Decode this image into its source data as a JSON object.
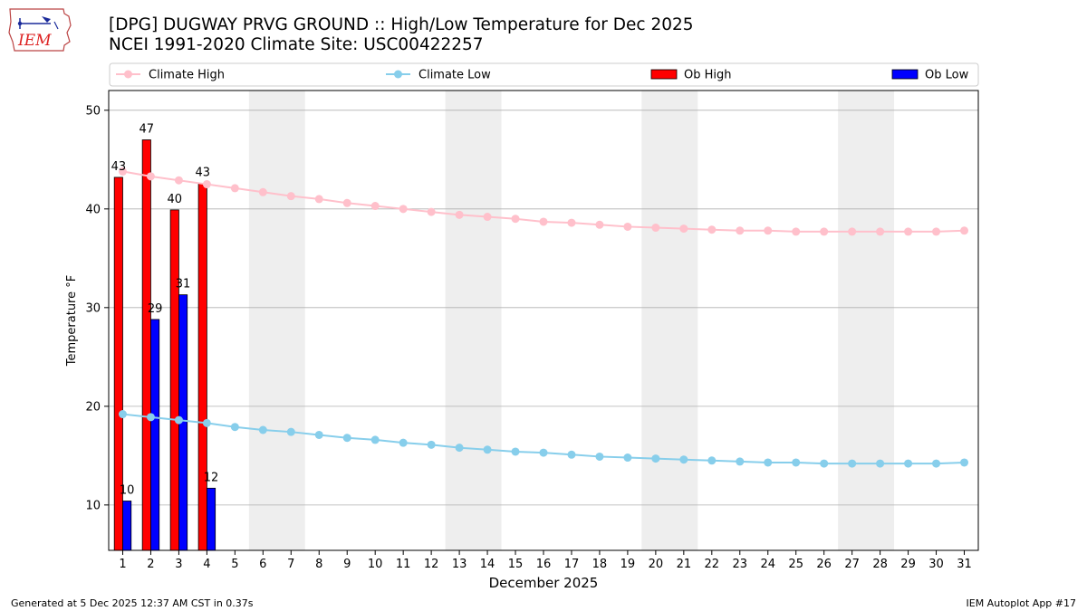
{
  "logo": {
    "text": "IEM"
  },
  "title": {
    "line1": "[DPG] DUGWAY PRVG GROUND :: High/Low Temperature for Dec 2025",
    "line2": "NCEI 1991-2020 Climate Site: USC00422257"
  },
  "footer": {
    "left": "Generated at 5 Dec 2025 12:37 AM CST in 0.37s",
    "right": "IEM Autoplot App #17"
  },
  "colors": {
    "climate_high": "#ffc0cb",
    "climate_low": "#87ceeb",
    "ob_high": "#ff0000",
    "ob_low": "#0000ff",
    "weekend_band": "#eeeeee",
    "grid": "#b0b0b0"
  },
  "chart_data": {
    "type": "bar",
    "xlabel": "December 2025",
    "ylabel": "Temperature °F",
    "ylim": [
      5.4,
      52
    ],
    "xlim": [
      0.5,
      31.5
    ],
    "yticks": [
      10,
      20,
      30,
      40,
      50
    ],
    "grid": "horizontal",
    "legend_placement": "top, above plot",
    "legend": [
      "Climate High",
      "Climate Low",
      "Ob High",
      "Ob Low"
    ],
    "days": [
      1,
      2,
      3,
      4,
      5,
      6,
      7,
      8,
      9,
      10,
      11,
      12,
      13,
      14,
      15,
      16,
      17,
      18,
      19,
      20,
      21,
      22,
      23,
      24,
      25,
      26,
      27,
      28,
      29,
      30,
      31
    ],
    "weekend_bands": [
      [
        6,
        7
      ],
      [
        13,
        14
      ],
      [
        20,
        21
      ],
      [
        27,
        28
      ]
    ],
    "series": [
      {
        "name": "Climate High",
        "kind": "line",
        "values": [
          43.8,
          43.3,
          42.9,
          42.5,
          42.1,
          41.7,
          41.3,
          41.0,
          40.6,
          40.3,
          40.0,
          39.7,
          39.4,
          39.2,
          39.0,
          38.7,
          38.6,
          38.4,
          38.2,
          38.1,
          38.0,
          37.9,
          37.8,
          37.8,
          37.7,
          37.7,
          37.7,
          37.7,
          37.7,
          37.7,
          37.8
        ]
      },
      {
        "name": "Climate Low",
        "kind": "line",
        "values": [
          19.2,
          18.9,
          18.6,
          18.3,
          17.9,
          17.6,
          17.4,
          17.1,
          16.8,
          16.6,
          16.3,
          16.1,
          15.8,
          15.6,
          15.4,
          15.3,
          15.1,
          14.9,
          14.8,
          14.7,
          14.6,
          14.5,
          14.4,
          14.3,
          14.3,
          14.2,
          14.2,
          14.2,
          14.2,
          14.2,
          14.3
        ]
      },
      {
        "name": "Ob High",
        "kind": "bar",
        "days": [
          1,
          2,
          3,
          4
        ],
        "values": [
          43.2,
          47.0,
          39.9,
          42.6
        ],
        "labels": [
          "43",
          "47",
          "40",
          "43"
        ]
      },
      {
        "name": "Ob Low",
        "kind": "bar",
        "days": [
          1,
          2,
          3,
          4
        ],
        "values": [
          10.4,
          28.8,
          31.3,
          11.7
        ],
        "labels": [
          "10",
          "29",
          "31",
          "12"
        ]
      }
    ]
  }
}
